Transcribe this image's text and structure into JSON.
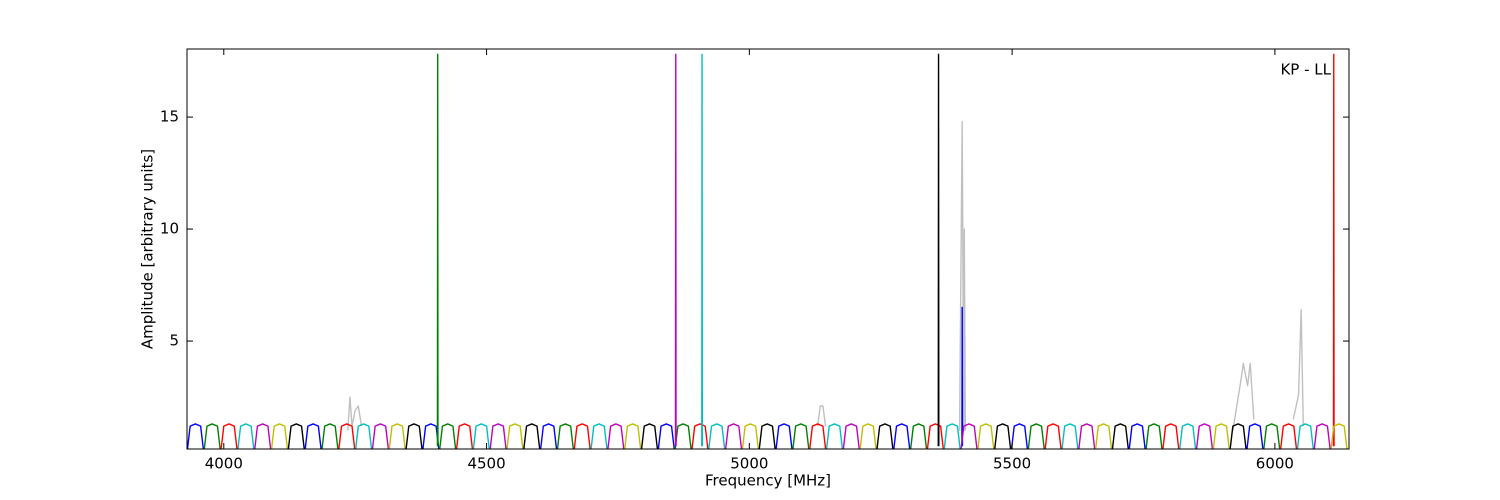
{
  "chart_data": {
    "type": "line",
    "annotation": "KP - LL",
    "x_label": "Frequency [MHz]",
    "y_label": "Amplitude [arbitrary units]",
    "xlim": [
      3930,
      6141
    ],
    "ylim": [
      0.18,
      18.04
    ],
    "xticks": [
      4000,
      4500,
      5000,
      5500,
      6000
    ],
    "yticks": [
      5,
      10,
      15
    ],
    "grid": false,
    "series": [
      {
        "color": "#c0c0c0",
        "x": [
          4236,
          4240,
          4244,
          4250,
          4256,
          4262,
          4263,
          5130,
          5135,
          5140,
          5145,
          5146,
          5400,
          5405,
          5408,
          5409,
          5411,
          5412,
          5920,
          5935,
          5940,
          5948,
          5953,
          5960,
          5961,
          6035,
          6045,
          6050,
          6054
        ],
        "values": [
          1.0,
          2.5,
          1.2,
          1.9,
          2.1,
          1.2,
          null,
          1.2,
          2.1,
          2.1,
          1.2,
          null,
          1.0,
          14.8,
          1.0,
          10,
          1.0,
          null,
          1.0,
          3.2,
          4.0,
          3.0,
          4.0,
          1.5,
          null,
          1.5,
          2.6,
          6.4,
          1.2
        ]
      },
      {
        "color": "#0000ff",
        "x": [
          3931,
          3936,
          3946,
          3956,
          3961,
          3962,
          4155,
          4160,
          4170,
          4180,
          4185,
          4186,
          4379,
          4384,
          4394,
          4404,
          4409,
          4410,
          4603,
          4608,
          4618,
          4628,
          4633,
          4634,
          4827,
          4832,
          4842,
          4852,
          4857,
          4858,
          5051,
          5056,
          5066,
          5076,
          5081,
          5082,
          5275,
          5280,
          5290,
          5300,
          5305,
          5306,
          5499,
          5504,
          5514,
          5524,
          5529,
          5530,
          5723,
          5728,
          5738,
          5748,
          5753,
          5754,
          5947,
          5952,
          5962,
          5972,
          5977,
          5978,
          5404.5,
          5405,
          5405.5
        ],
        "values": [
          0.2,
          1.2,
          1.3,
          1.2,
          0.2,
          null,
          0.2,
          1.2,
          1.3,
          1.2,
          0.2,
          null,
          0.2,
          1.2,
          1.3,
          1.2,
          0.2,
          null,
          0.2,
          1.2,
          1.3,
          1.2,
          0.2,
          null,
          0.2,
          1.2,
          1.3,
          1.2,
          0.2,
          null,
          0.2,
          1.2,
          1.3,
          1.2,
          0.2,
          null,
          0.2,
          1.2,
          1.3,
          1.2,
          0.2,
          null,
          0.2,
          1.2,
          1.3,
          1.2,
          0.2,
          null,
          0.2,
          1.2,
          1.3,
          1.2,
          0.2,
          null,
          0.2,
          1.2,
          1.3,
          1.2,
          0.2,
          null,
          0.3,
          6.5,
          0.3
        ]
      },
      {
        "color": "#008000",
        "x": [
          3963,
          3968,
          3978,
          3988,
          3993,
          3994,
          4187,
          4192,
          4202,
          4212,
          4217,
          4218,
          4411,
          4416,
          4426,
          4436,
          4441,
          4442,
          4635,
          4640,
          4650,
          4660,
          4665,
          4666,
          4859,
          4864,
          4874,
          4884,
          4889,
          4890,
          5083,
          5088,
          5098,
          5108,
          5113,
          5114,
          5307,
          5312,
          5322,
          5332,
          5337,
          5338,
          5531,
          5536,
          5546,
          5556,
          5561,
          5562,
          5755,
          5760,
          5770,
          5780,
          5785,
          5786,
          5979,
          5984,
          5994,
          6004,
          6009,
          6010,
          4406.5,
          4407,
          4407.5
        ],
        "values": [
          0.2,
          1.2,
          1.3,
          1.2,
          0.2,
          null,
          0.2,
          1.2,
          1.3,
          1.2,
          0.2,
          null,
          0.2,
          1.2,
          1.3,
          1.2,
          0.2,
          null,
          0.2,
          1.2,
          1.3,
          1.2,
          0.2,
          null,
          0.2,
          1.2,
          1.3,
          1.2,
          0.2,
          null,
          0.2,
          1.2,
          1.3,
          1.2,
          0.2,
          null,
          0.2,
          1.2,
          1.3,
          1.2,
          0.2,
          null,
          0.2,
          1.2,
          1.3,
          1.2,
          0.2,
          null,
          0.2,
          1.2,
          1.3,
          1.2,
          0.2,
          null,
          0.2,
          1.2,
          1.3,
          1.2,
          0.2,
          null,
          0.3,
          17.8,
          0.3
        ]
      },
      {
        "color": "#ff0000",
        "x": [
          3995,
          4000,
          4010,
          4020,
          4025,
          4026,
          4219,
          4224,
          4234,
          4244,
          4249,
          4250,
          4443,
          4448,
          4458,
          4468,
          4473,
          4474,
          4667,
          4672,
          4682,
          4692,
          4697,
          4698,
          4891,
          4896,
          4906,
          4916,
          4921,
          4922,
          5115,
          5120,
          5130,
          5140,
          5145,
          5146,
          5339,
          5344,
          5354,
          5364,
          5369,
          5370,
          5563,
          5568,
          5578,
          5588,
          5593,
          5594,
          5787,
          5792,
          5802,
          5812,
          5817,
          5818,
          6011,
          6016,
          6026,
          6036,
          6041,
          6042,
          6111.5,
          6112,
          6112.5
        ],
        "values": [
          0.2,
          1.2,
          1.3,
          1.2,
          0.2,
          null,
          0.2,
          1.2,
          1.3,
          1.2,
          0.2,
          null,
          0.2,
          1.2,
          1.3,
          1.2,
          0.2,
          null,
          0.2,
          1.2,
          1.3,
          1.2,
          0.2,
          null,
          0.2,
          1.2,
          1.3,
          1.2,
          0.2,
          null,
          0.2,
          1.2,
          1.3,
          1.2,
          0.2,
          null,
          0.2,
          1.2,
          1.3,
          1.2,
          0.2,
          null,
          0.2,
          1.2,
          1.3,
          1.2,
          0.2,
          null,
          0.2,
          1.2,
          1.3,
          1.2,
          0.2,
          null,
          0.2,
          1.2,
          1.3,
          1.2,
          0.2,
          null,
          0.3,
          17.8,
          0.3
        ]
      },
      {
        "color": "#00bfbf",
        "x": [
          4027,
          4032,
          4042,
          4052,
          4057,
          4058,
          4251,
          4256,
          4266,
          4276,
          4281,
          4282,
          4475,
          4480,
          4490,
          4500,
          4505,
          4506,
          4699,
          4704,
          4714,
          4724,
          4729,
          4730,
          4923,
          4928,
          4938,
          4948,
          4953,
          4954,
          5147,
          5152,
          5162,
          5172,
          5177,
          5178,
          5371,
          5376,
          5386,
          5396,
          5401,
          5402,
          5595,
          5600,
          5610,
          5620,
          5625,
          5626,
          5819,
          5824,
          5834,
          5844,
          5849,
          5850,
          6043,
          6048,
          6058,
          6068,
          6073,
          6074,
          4909.5,
          4910,
          4910.5
        ],
        "values": [
          0.2,
          1.2,
          1.3,
          1.2,
          0.2,
          null,
          0.2,
          1.2,
          1.3,
          1.2,
          0.2,
          null,
          0.2,
          1.2,
          1.3,
          1.2,
          0.2,
          null,
          0.2,
          1.2,
          1.3,
          1.2,
          0.2,
          null,
          0.2,
          1.2,
          1.3,
          1.2,
          0.2,
          null,
          0.2,
          1.2,
          1.3,
          1.2,
          0.2,
          null,
          0.2,
          1.2,
          1.3,
          1.2,
          0.2,
          null,
          0.2,
          1.2,
          1.3,
          1.2,
          0.2,
          null,
          0.2,
          1.2,
          1.3,
          1.2,
          0.2,
          null,
          0.2,
          1.2,
          1.3,
          1.2,
          0.2,
          null,
          0.3,
          17.8,
          0.3
        ]
      },
      {
        "color": "#bf00bf",
        "x": [
          4059,
          4064,
          4074,
          4084,
          4089,
          4090,
          4283,
          4288,
          4298,
          4308,
          4313,
          4314,
          4507,
          4512,
          4522,
          4532,
          4537,
          4538,
          4731,
          4736,
          4746,
          4756,
          4761,
          4762,
          4955,
          4960,
          4970,
          4980,
          4985,
          4986,
          5179,
          5184,
          5194,
          5204,
          5209,
          5210,
          5403,
          5408,
          5418,
          5428,
          5433,
          5434,
          5627,
          5632,
          5642,
          5652,
          5657,
          5658,
          5851,
          5856,
          5866,
          5876,
          5881,
          5882,
          6075,
          6080,
          6090,
          6100,
          6105,
          6106,
          4859.5,
          4860,
          4860.5
        ],
        "values": [
          0.2,
          1.2,
          1.3,
          1.2,
          0.2,
          null,
          0.2,
          1.2,
          1.3,
          1.2,
          0.2,
          null,
          0.2,
          1.2,
          1.3,
          1.2,
          0.2,
          null,
          0.2,
          1.2,
          1.3,
          1.2,
          0.2,
          null,
          0.2,
          1.2,
          1.3,
          1.2,
          0.2,
          null,
          0.2,
          1.2,
          1.3,
          1.2,
          0.2,
          null,
          0.2,
          1.2,
          1.3,
          1.2,
          0.2,
          null,
          0.2,
          1.2,
          1.3,
          1.2,
          0.2,
          null,
          0.2,
          1.2,
          1.3,
          1.2,
          0.2,
          null,
          0.2,
          1.2,
          1.3,
          1.2,
          0.2,
          null,
          0.3,
          17.8,
          0.3
        ]
      },
      {
        "color": "#bfbf00",
        "x": [
          4091,
          4096,
          4106,
          4116,
          4121,
          4122,
          4315,
          4320,
          4330,
          4340,
          4345,
          4346,
          4539,
          4544,
          4554,
          4564,
          4569,
          4570,
          4763,
          4768,
          4778,
          4788,
          4793,
          4794,
          4987,
          4992,
          5002,
          5012,
          5017,
          5018,
          5211,
          5216,
          5226,
          5236,
          5241,
          5242,
          5435,
          5440,
          5450,
          5460,
          5465,
          5466,
          5659,
          5664,
          5674,
          5684,
          5689,
          5690,
          5883,
          5888,
          5898,
          5908,
          5913,
          5914,
          6107,
          6112,
          6122,
          6132,
          6137
        ],
        "values": [
          0.2,
          1.2,
          1.3,
          1.2,
          0.2,
          null,
          0.2,
          1.2,
          1.3,
          1.2,
          0.2,
          null,
          0.2,
          1.2,
          1.3,
          1.2,
          0.2,
          null,
          0.2,
          1.2,
          1.3,
          1.2,
          0.2,
          null,
          0.2,
          1.2,
          1.3,
          1.2,
          0.2,
          null,
          0.2,
          1.2,
          1.3,
          1.2,
          0.2,
          null,
          0.2,
          1.2,
          1.3,
          1.2,
          0.2,
          null,
          0.2,
          1.2,
          1.3,
          1.2,
          0.2,
          null,
          0.2,
          1.2,
          1.3,
          1.2,
          0.2,
          null,
          0.2,
          1.2,
          1.3,
          1.2,
          0.2
        ]
      },
      {
        "color": "#000000",
        "x": [
          4123,
          4128,
          4138,
          4148,
          4153,
          4154,
          4347,
          4352,
          4362,
          4372,
          4377,
          4378,
          4571,
          4576,
          4586,
          4596,
          4601,
          4602,
          4795,
          4800,
          4810,
          4820,
          4825,
          4826,
          5019,
          5024,
          5034,
          5044,
          5049,
          5050,
          5243,
          5248,
          5258,
          5268,
          5273,
          5274,
          5467,
          5472,
          5482,
          5492,
          5497,
          5498,
          5691,
          5696,
          5706,
          5716,
          5721,
          5722,
          5915,
          5920,
          5930,
          5940,
          5945,
          5946,
          5359.5,
          5360,
          5360.5
        ],
        "values": [
          0.2,
          1.2,
          1.3,
          1.2,
          0.2,
          null,
          0.2,
          1.2,
          1.3,
          1.2,
          0.2,
          null,
          0.2,
          1.2,
          1.3,
          1.2,
          0.2,
          null,
          0.2,
          1.2,
          1.3,
          1.2,
          0.2,
          null,
          0.2,
          1.2,
          1.3,
          1.2,
          0.2,
          null,
          0.2,
          1.2,
          1.3,
          1.2,
          0.2,
          null,
          0.2,
          1.2,
          1.3,
          1.2,
          0.2,
          null,
          0.2,
          1.2,
          1.3,
          1.2,
          0.2,
          null,
          0.2,
          1.2,
          1.3,
          1.2,
          0.2,
          null,
          0.3,
          17.8,
          0.3
        ]
      }
    ]
  }
}
